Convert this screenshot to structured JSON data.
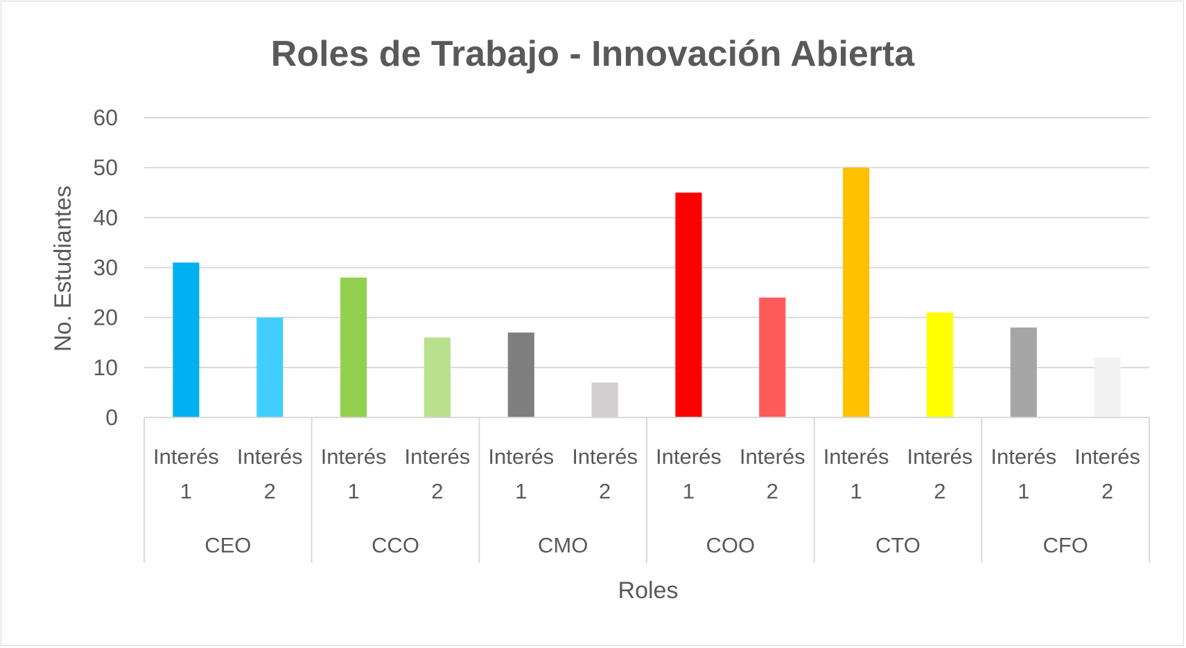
{
  "chart_data": {
    "type": "bar",
    "title": "Roles de Trabajo - Innovación Abierta",
    "xlabel": "Roles",
    "ylabel": "No. Estudiantes",
    "ylim": [
      0,
      60
    ],
    "yticks": [
      0,
      10,
      20,
      30,
      40,
      50,
      60
    ],
    "grid": true,
    "legend": "none",
    "groups": [
      {
        "label": "CEO",
        "bars": [
          {
            "label_line1": "Interés",
            "label_line2": "1",
            "value": 31,
            "color": "#00b0f0"
          },
          {
            "label_line1": "Interés",
            "label_line2": "2",
            "value": 20,
            "color": "#3fceff"
          }
        ]
      },
      {
        "label": "CCO",
        "bars": [
          {
            "label_line1": "Interés",
            "label_line2": "1",
            "value": 28,
            "color": "#92d050"
          },
          {
            "label_line1": "Interés",
            "label_line2": "2",
            "value": 16,
            "color": "#b8e08f"
          }
        ]
      },
      {
        "label": "CMO",
        "bars": [
          {
            "label_line1": "Interés",
            "label_line2": "1",
            "value": 17,
            "color": "#7f7f7f"
          },
          {
            "label_line1": "Interés",
            "label_line2": "2",
            "value": 7,
            "color": "#d0cece"
          }
        ]
      },
      {
        "label": "COO",
        "bars": [
          {
            "label_line1": "Interés",
            "label_line2": "1",
            "value": 45,
            "color": "#ff0000"
          },
          {
            "label_line1": "Interés",
            "label_line2": "2",
            "value": 24,
            "color": "#ff5b5b"
          }
        ]
      },
      {
        "label": "CTO",
        "bars": [
          {
            "label_line1": "Interés",
            "label_line2": "1",
            "value": 50,
            "color": "#ffc000"
          },
          {
            "label_line1": "Interés",
            "label_line2": "2",
            "value": 21,
            "color": "#ffff00"
          }
        ]
      },
      {
        "label": "CFO",
        "bars": [
          {
            "label_line1": "Interés",
            "label_line2": "1",
            "value": 18,
            "color": "#a6a6a6"
          },
          {
            "label_line1": "Interés",
            "label_line2": "2",
            "value": 12,
            "color": "#f2f2f2"
          }
        ]
      }
    ],
    "colors": {
      "text": "#595959",
      "gridline": "#d9d9d9",
      "axis": "#d9d9d9"
    }
  }
}
